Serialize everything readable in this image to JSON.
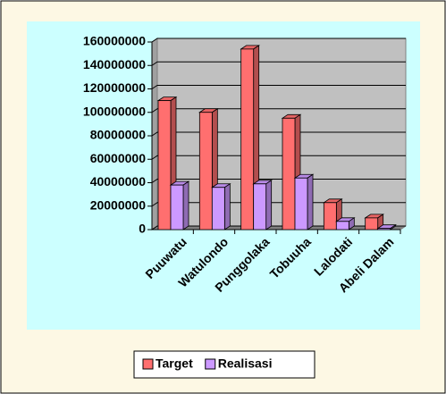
{
  "chart_data": {
    "type": "bar",
    "categories": [
      "Puuwatu",
      "Watulondo",
      "Punggolaka",
      "Tobuuha",
      "Lalodati",
      "Abeli Dalam"
    ],
    "series": [
      {
        "name": "Target",
        "color": "#ff6f6f",
        "values": [
          110000000,
          100000000,
          154000000,
          95000000,
          23000000,
          10000000
        ]
      },
      {
        "name": "Realisasi",
        "color": "#cc99ff",
        "values": [
          38000000,
          36000000,
          39000000,
          44000000,
          7000000,
          1000000
        ]
      }
    ],
    "ylim": [
      0,
      160000000
    ],
    "yticks": [
      0,
      20000000,
      40000000,
      60000000,
      80000000,
      100000000,
      120000000,
      140000000,
      160000000
    ],
    "grid": true
  }
}
